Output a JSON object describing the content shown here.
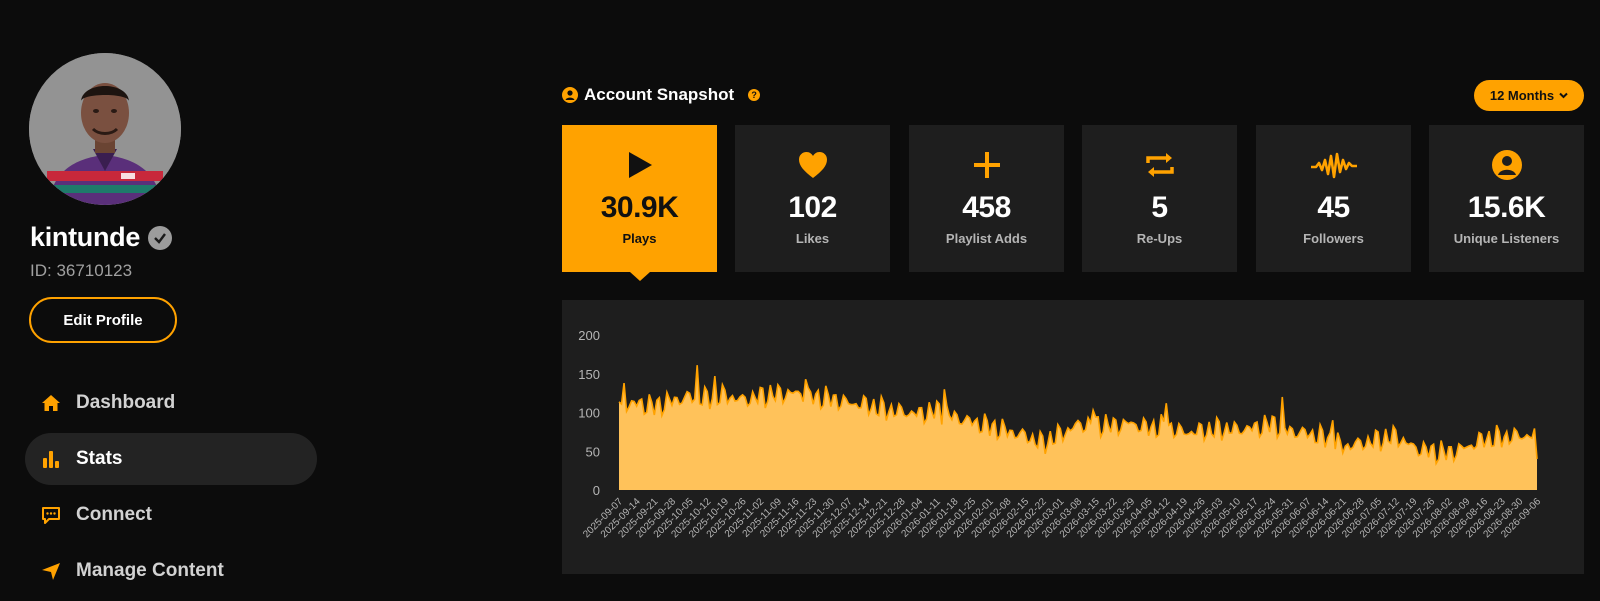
{
  "profile": {
    "username": "kintunde",
    "id_text": "ID: 36710123",
    "edit_label": "Edit Profile"
  },
  "nav": [
    {
      "label": "Dashboard",
      "icon": "home-icon",
      "active": false
    },
    {
      "label": "Stats",
      "icon": "bar-chart-icon",
      "active": true
    },
    {
      "label": "Connect",
      "icon": "chat-icon",
      "active": false
    },
    {
      "label": "Manage Content",
      "icon": "send-icon",
      "active": false
    }
  ],
  "snapshot": {
    "title": "Account Snapshot",
    "help": "?",
    "range_label": "12 Months"
  },
  "cards": [
    {
      "value": "30.9K",
      "label": "Plays",
      "icon": "play-icon",
      "active": true
    },
    {
      "value": "102",
      "label": "Likes",
      "icon": "heart-icon",
      "active": false
    },
    {
      "value": "458",
      "label": "Playlist Adds",
      "icon": "plus-icon",
      "active": false
    },
    {
      "value": "5",
      "label": "Re-Ups",
      "icon": "repost-icon",
      "active": false
    },
    {
      "value": "45",
      "label": "Followers",
      "icon": "waveform-icon",
      "active": false
    },
    {
      "value": "15.6K",
      "label": "Unique Listeners",
      "icon": "user-circle-icon",
      "active": false
    }
  ],
  "colors": {
    "accent": "#ffa200",
    "area_fill": "#ffc25a",
    "card_bg": "#1e1e1e",
    "page_bg": "#0c0c0c"
  },
  "chart_data": {
    "type": "area",
    "title": "",
    "xlabel": "",
    "ylabel": "",
    "ylim": [
      0,
      200
    ],
    "yticks": [
      0,
      50,
      100,
      150,
      200
    ],
    "grid": false,
    "x_tick_labels": [
      "2025-09-07",
      "2025-09-14",
      "2025-09-21",
      "2025-09-28",
      "2025-10-05",
      "2025-10-12",
      "2025-10-19",
      "2025-10-26",
      "2025-11-02",
      "2025-11-09",
      "2025-11-16",
      "2025-11-23",
      "2025-11-30",
      "2025-12-07",
      "2025-12-14",
      "2025-12-21",
      "2025-12-28",
      "2026-01-04",
      "2026-01-11",
      "2026-01-18",
      "2026-01-25",
      "2026-02-01",
      "2026-02-08",
      "2026-02-15",
      "2026-02-22",
      "2026-03-01",
      "2026-03-08",
      "2026-03-15",
      "2026-03-22",
      "2026-03-29",
      "2026-04-05",
      "2026-04-12",
      "2026-04-19",
      "2026-04-26",
      "2026-05-03",
      "2026-05-10",
      "2026-05-17",
      "2026-05-24",
      "2026-05-31",
      "2026-06-07",
      "2026-06-14",
      "2026-06-21",
      "2026-06-28",
      "2026-07-05",
      "2026-07-12",
      "2026-07-19",
      "2026-07-26",
      "2026-08-02",
      "2026-08-09",
      "2026-08-16",
      "2026-08-23",
      "2026-08-30",
      "2026-09-06"
    ],
    "weekly_values": [
      105,
      112,
      108,
      115,
      120,
      118,
      122,
      116,
      121,
      124,
      125,
      120,
      118,
      112,
      110,
      104,
      101,
      98,
      103,
      94,
      88,
      82,
      76,
      70,
      60,
      72,
      84,
      85,
      83,
      86,
      80,
      82,
      74,
      76,
      79,
      78,
      80,
      86,
      76,
      73,
      68,
      56,
      60,
      65,
      70,
      55,
      50,
      48,
      55,
      66,
      68,
      70,
      70
    ],
    "peaks": [
      {
        "date": "2025-09-09",
        "value": 138
      },
      {
        "date": "2025-10-08",
        "value": 161
      },
      {
        "date": "2025-10-15",
        "value": 147
      },
      {
        "date": "2025-11-20",
        "value": 143
      },
      {
        "date": "2026-01-14",
        "value": 130
      },
      {
        "date": "2026-03-14",
        "value": 103
      },
      {
        "date": "2026-04-12",
        "value": 112
      },
      {
        "date": "2026-05-28",
        "value": 120
      },
      {
        "date": "2026-06-17",
        "value": 90
      }
    ],
    "series": [
      {
        "values_ref": "weekly_values"
      }
    ]
  }
}
